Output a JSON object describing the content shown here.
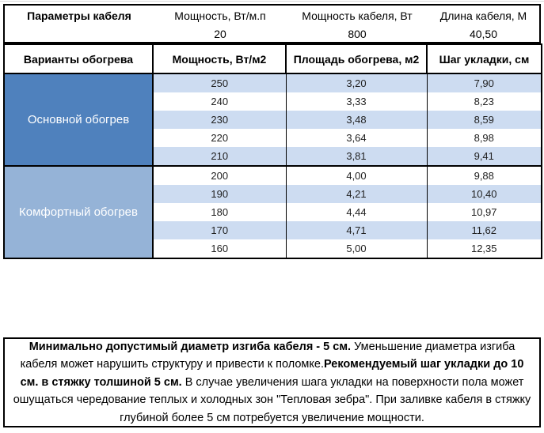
{
  "colors": {
    "border": "#000000",
    "group1_bg": "#4f81bd",
    "group2_bg": "#95b3d7",
    "band_bg": "#cddcf1",
    "group_text": "#ffffff"
  },
  "params": {
    "title": "Параметры кабеля",
    "columns": [
      {
        "name": "Мощность, Вт/м.п",
        "value": "20"
      },
      {
        "name": "Мощность кабеля, Вт",
        "value": "800"
      },
      {
        "name": "Длина кабеля, М",
        "value": "40,50"
      }
    ]
  },
  "table": {
    "headers": [
      "Варианты обогрева",
      "Мощность, Вт/м2",
      "Площадь обогрева, м2",
      "Шаг укладки, см"
    ],
    "groups": [
      {
        "label": "Основной обогрев",
        "rows": [
          [
            "250",
            "3,20",
            "7,90"
          ],
          [
            "240",
            "3,33",
            "8,23"
          ],
          [
            "230",
            "3,48",
            "8,59"
          ],
          [
            "220",
            "3,64",
            "8,98"
          ],
          [
            "210",
            "3,81",
            "9,41"
          ]
        ]
      },
      {
        "label": "Комфортный обогрев",
        "rows": [
          [
            "200",
            "4,00",
            "9,88"
          ],
          [
            "190",
            "4,21",
            "10,40"
          ],
          [
            "180",
            "4,44",
            "10,97"
          ],
          [
            "170",
            "4,71",
            "11,62"
          ],
          [
            "160",
            "5,00",
            "12,35"
          ]
        ]
      }
    ]
  },
  "note": {
    "segments": [
      {
        "text": "Минимально допустимый диаметр изгиба кабеля - 5 см.",
        "bold": true
      },
      {
        "text": "  Уменьшение диаметра изгиба кабеля может нарушить структуру и привести к поломке.",
        "bold": false
      },
      {
        "text": "Рекомендуемый шаг укладки до 10 см. в стяжку толшиной 5 см.",
        "bold": true
      },
      {
        "text": " В  случае увеличения шага укладки на поверхности пола может ошущаться чередование теплых и холодных зон \"Тепловая зебра\". При заливке кабеля в стяжку глубиной более 5 см потребуется увеличение мощности.",
        "bold": false
      }
    ]
  }
}
